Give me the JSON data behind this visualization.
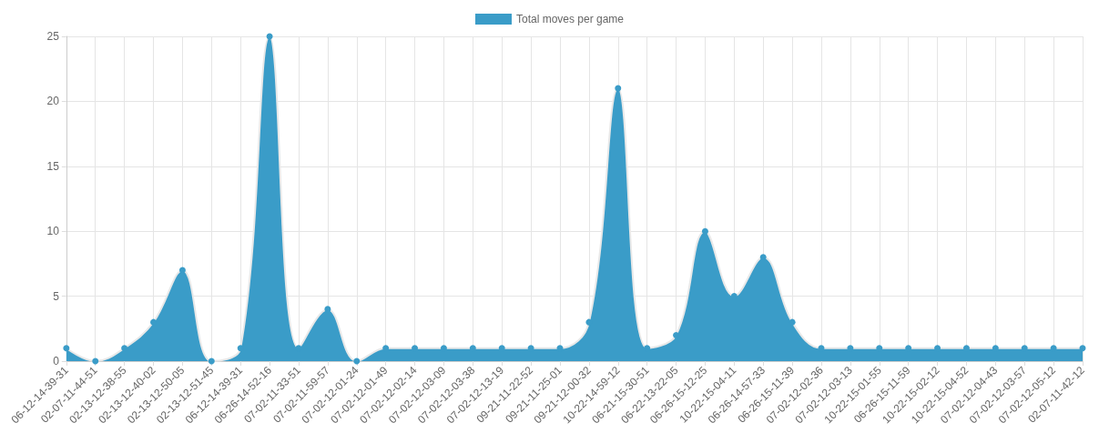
{
  "chart_data": {
    "type": "area",
    "categories": [
      "06-12-14-39-31",
      "02-07-11-44-51",
      "02-13-12-38-55",
      "02-13-12-40-02",
      "02-13-12-50-05",
      "02-13-12-51-45",
      "06-12-14-39-31",
      "06-26-14-52-16",
      "07-02-11-33-51",
      "07-02-11-59-57",
      "07-02-12-01-24",
      "07-02-12-01-49",
      "07-02-12-02-14",
      "07-02-12-03-09",
      "07-02-12-03-38",
      "07-02-12-13-19",
      "09-21-11-22-52",
      "09-21-11-25-01",
      "09-21-12-00-32",
      "10-22-14-59-12",
      "06-21-15-30-51",
      "06-22-13-22-05",
      "06-26-15-12-25",
      "10-22-15-04-11",
      "06-26-14-57-33",
      "06-26-15-11-39",
      "07-02-12-02-36",
      "07-02-12-03-13",
      "10-22-15-01-55",
      "06-26-15-11-59",
      "10-22-15-02-12",
      "10-22-15-04-52",
      "07-02-12-04-43",
      "07-02-12-03-57",
      "07-02-12-05-12",
      "02-07-11-42-12"
    ],
    "series": [
      {
        "name": "Total moves per game",
        "color": "#3a9cc8",
        "values": [
          1,
          0,
          1,
          3,
          7,
          0,
          1,
          25,
          1,
          4,
          0,
          1,
          1,
          1,
          1,
          1,
          1,
          1,
          3,
          21,
          1,
          2,
          10,
          5,
          8,
          3,
          1,
          1,
          1,
          1,
          1,
          1,
          1,
          1,
          1,
          1
        ]
      }
    ],
    "ylim": [
      0,
      25
    ],
    "yticks": [
      0,
      5,
      10,
      15,
      20,
      25
    ],
    "grid": true,
    "legend": "top",
    "marker": "circle"
  }
}
